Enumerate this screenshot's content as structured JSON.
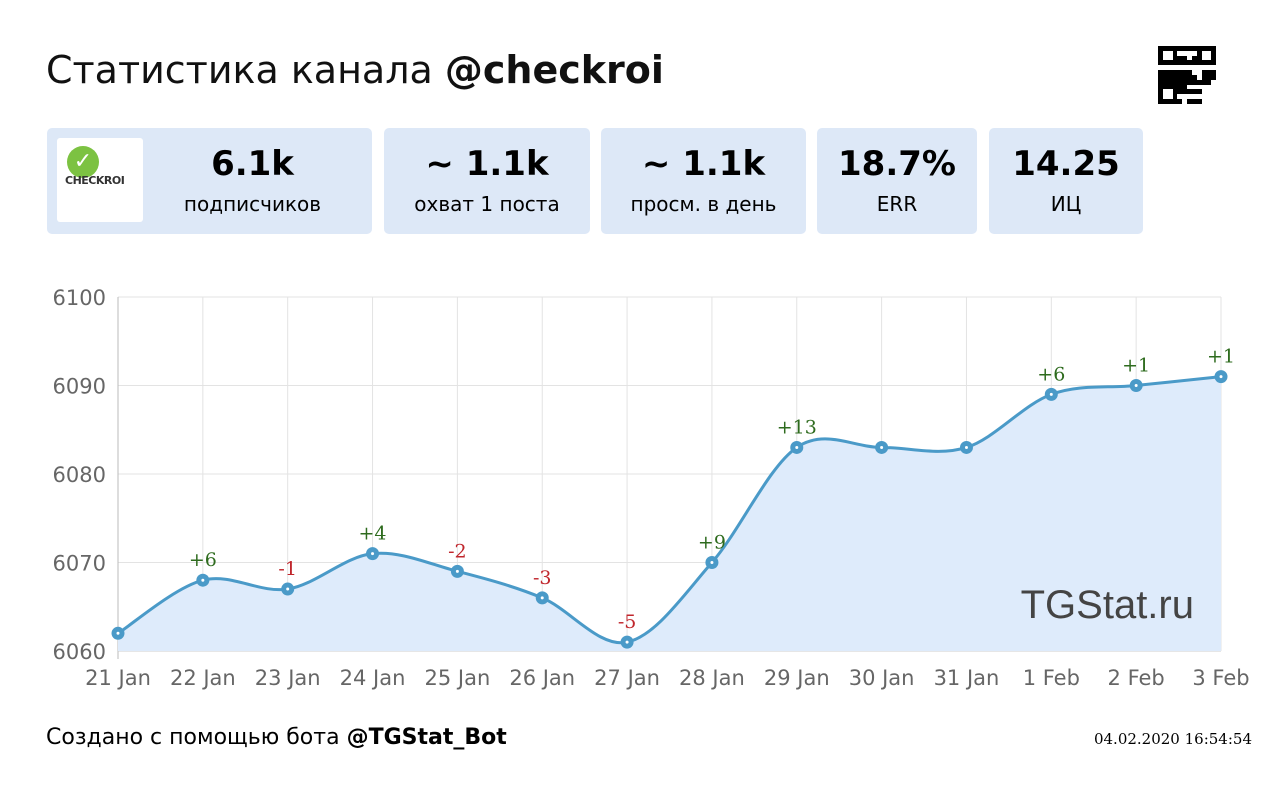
{
  "header": {
    "title_prefix": "Статистика канала",
    "channel": "@checkroi"
  },
  "logo": {
    "text": "CHECKROI"
  },
  "stats": [
    {
      "value": "6.1k",
      "label": "подписчиков"
    },
    {
      "value": "~ 1.1k",
      "label": "охват 1 поста"
    },
    {
      "value": "~ 1.1k",
      "label": "просм. в день"
    },
    {
      "value": "18.7%",
      "label": "ERR"
    },
    {
      "value": "14.25",
      "label": "ИЦ"
    }
  ],
  "chart_data": {
    "type": "area",
    "categories": [
      "21 Jan",
      "22 Jan",
      "23 Jan",
      "24 Jan",
      "25 Jan",
      "26 Jan",
      "27 Jan",
      "28 Jan",
      "29 Jan",
      "30 Jan",
      "31 Jan",
      "1 Feb",
      "2 Feb",
      "3 Feb"
    ],
    "values": [
      6062,
      6068,
      6067,
      6071,
      6069,
      6066,
      6061,
      6070,
      6083,
      6083,
      6083,
      6089,
      6090,
      6091
    ],
    "deltas": [
      "",
      "+6",
      "-1",
      "+4",
      "-2",
      "-3",
      "-5",
      "+9",
      "+13",
      "",
      "",
      "+6",
      "+1",
      "+1"
    ],
    "yticks": [
      6060,
      6070,
      6080,
      6090,
      6100
    ],
    "ylim": [
      6060,
      6100
    ],
    "watermark": "TGStat.ru",
    "colors": {
      "line": "#4a9ac8",
      "fill": "#deebfb",
      "pos": "#2e6b1e",
      "neg": "#c0262c"
    }
  },
  "footer": {
    "prefix": "Создано с помощью бота",
    "bot": "@TGStat_Bot",
    "date": "04.02.2020 16:54:54"
  }
}
